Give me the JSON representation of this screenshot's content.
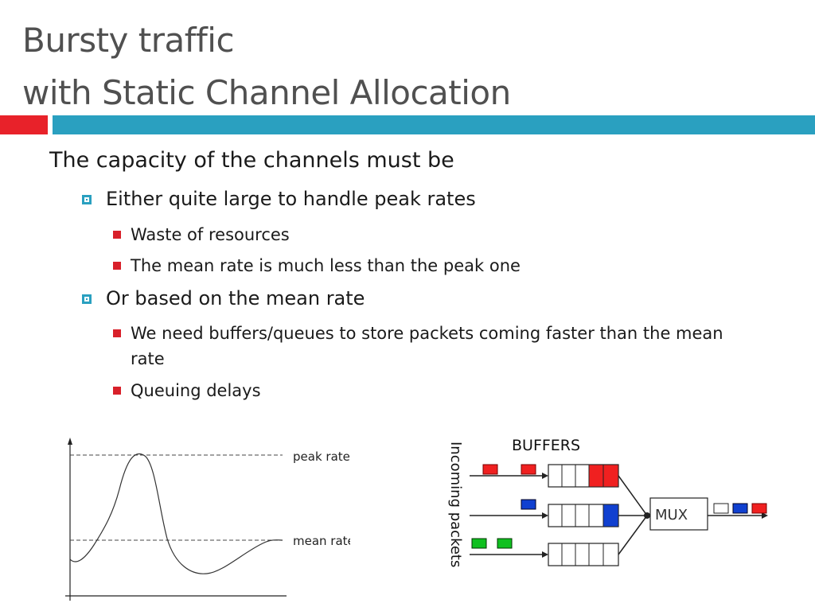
{
  "slide": {
    "title_line1": "Bursty traffic",
    "title_line2": "with Static Channel Allocation",
    "colors": {
      "accent_red": "#e8222a",
      "accent_blue": "#2aa0c0",
      "packet_red": "#f02020",
      "packet_blue": "#1040d0",
      "packet_green": "#10c020"
    }
  },
  "bullets": {
    "main": "The capacity of the channels must be",
    "opt1": "Either quite large to handle peak rates",
    "opt1_sub1": "Waste of resources",
    "opt1_sub2": "The mean rate is much less than the peak one",
    "opt2": "Or based on the mean rate",
    "opt2_sub1": "We need buffers/queues to store packets coming faster than the mean rate",
    "opt2_sub2": "Queuing delays"
  },
  "graph": {
    "peak_label": "peak rate",
    "mean_label": "mean rate"
  },
  "mux_diagram": {
    "buffers_label": "BUFFERS",
    "incoming_label": "Incoming packets",
    "mux_label": "MUX"
  }
}
